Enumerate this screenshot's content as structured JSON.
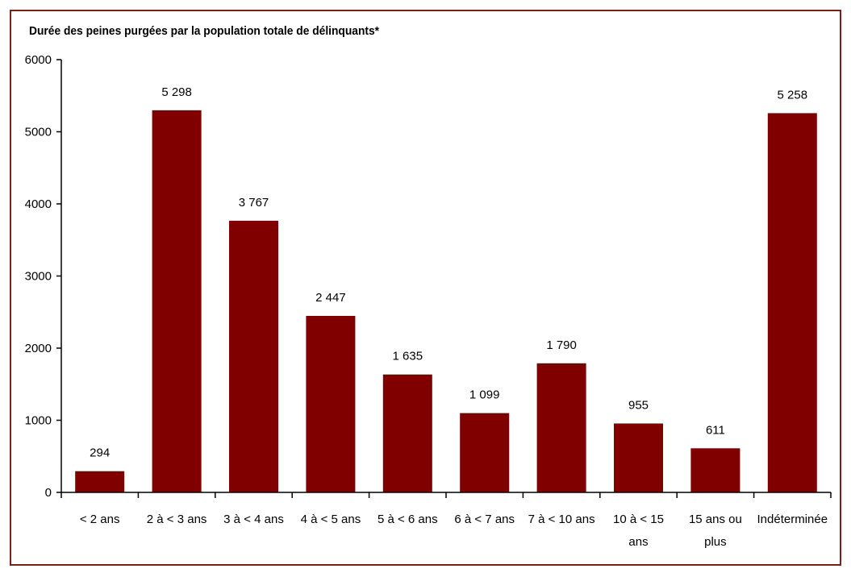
{
  "chart_data": {
    "type": "bar",
    "title": "Durée des peines purgées par la population totale de délinquants*",
    "categories": [
      [
        "< 2 ans"
      ],
      [
        "2 à < 3 ans"
      ],
      [
        "3 à < 4 ans"
      ],
      [
        "4 à < 5 ans"
      ],
      [
        "5 à < 6 ans"
      ],
      [
        "6 à < 7 ans"
      ],
      [
        "7 à < 10 ans"
      ],
      [
        "10 à < 15",
        "ans"
      ],
      [
        "15 ans ou",
        "plus"
      ],
      [
        "Indéterminée"
      ]
    ],
    "values": [
      294,
      5298,
      3767,
      2447,
      1635,
      1099,
      1790,
      955,
      611,
      5258
    ],
    "value_labels": [
      "294",
      "5 298",
      "3 767",
      "2 447",
      "1 635",
      "1 099",
      "1 790",
      "955",
      "611",
      "5 258"
    ],
    "ylim": [
      0,
      6000
    ],
    "yticks": [
      0,
      1000,
      2000,
      3000,
      4000,
      5000,
      6000
    ],
    "xlabel": "",
    "ylabel": "",
    "grid": false,
    "colors": {
      "bar": "#800000",
      "frame": "#7f1d1d",
      "axis": "#000000"
    }
  }
}
